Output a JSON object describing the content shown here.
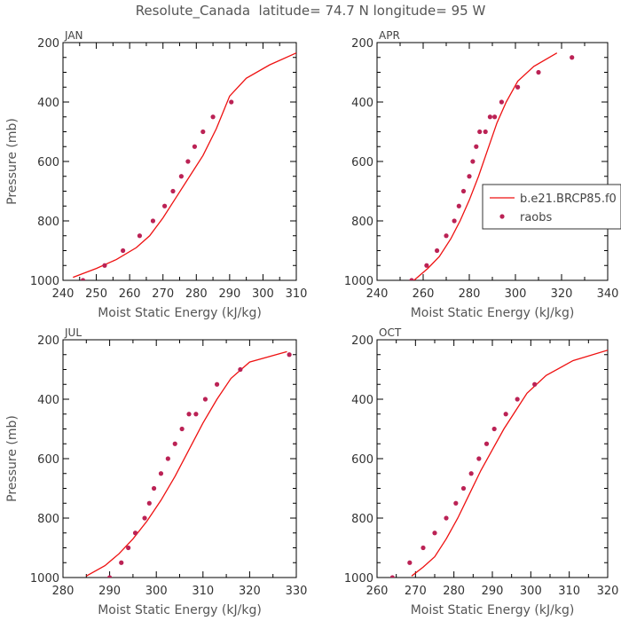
{
  "title": "Resolute_Canada  latitude= 74.7 N longitude= 95 W",
  "colors": {
    "model": "#ee1111",
    "raobs": "#bb2255",
    "axis": "#000000",
    "text": "#555555"
  },
  "chart_data": [
    {
      "type": "line",
      "panel": "JAN",
      "xlabel": "Moist Static Energy (kJ/kg)",
      "ylabel": "Pressure (mb)",
      "xlim": [
        240,
        310
      ],
      "ylim": [
        1000,
        200
      ],
      "xticks": [
        240,
        250,
        260,
        270,
        280,
        290,
        300,
        310
      ],
      "yticks": [
        200,
        400,
        600,
        800,
        1000
      ],
      "series": [
        {
          "name": "b.e21.BRCP85.f0",
          "style": "line",
          "x": [
            243,
            250,
            256,
            262,
            266,
            270,
            274,
            278,
            282,
            286,
            290,
            295,
            302,
            310
          ],
          "y": [
            990,
            960,
            930,
            890,
            850,
            790,
            720,
            650,
            580,
            490,
            380,
            320,
            275,
            235
          ]
        },
        {
          "name": "raobs",
          "style": "points",
          "x": [
            246,
            252.5,
            258,
            263,
            267,
            270.5,
            273,
            275.5,
            277.5,
            279.5,
            282,
            285,
            290.5
          ],
          "y": [
            1000,
            950,
            900,
            850,
            800,
            750,
            700,
            650,
            600,
            550,
            500,
            450,
            400
          ]
        }
      ]
    },
    {
      "type": "line",
      "panel": "APR",
      "xlabel": "Moist Static Energy (kJ/kg)",
      "ylabel": "",
      "xlim": [
        240,
        340
      ],
      "ylim": [
        1000,
        200
      ],
      "xticks": [
        240,
        260,
        280,
        300,
        320,
        340
      ],
      "yticks": [
        200,
        400,
        600,
        800,
        1000
      ],
      "legend": {
        "position": "right",
        "entries": [
          "b.e21.BRCP85.f0",
          "raobs"
        ]
      },
      "series": [
        {
          "name": "b.e21.BRCP85.f0",
          "style": "line",
          "x": [
            256,
            262,
            267,
            272,
            276,
            280,
            284,
            288,
            292,
            296,
            301,
            308,
            318
          ],
          "y": [
            1000,
            960,
            920,
            860,
            800,
            730,
            650,
            560,
            470,
            400,
            330,
            280,
            235
          ]
        },
        {
          "name": "raobs",
          "style": "points",
          "x": [
            255,
            261.5,
            266,
            270,
            273.5,
            275.5,
            277.5,
            280,
            281.5,
            283,
            284.5,
            287,
            289,
            291,
            294,
            301,
            310,
            324.5
          ],
          "y": [
            1000,
            950,
            900,
            850,
            800,
            750,
            700,
            650,
            600,
            550,
            500,
            500,
            450,
            450,
            400,
            350,
            300,
            250
          ]
        }
      ]
    },
    {
      "type": "line",
      "panel": "JUL",
      "xlabel": "Moist Static Energy (kJ/kg)",
      "ylabel": "Pressure (mb)",
      "xlim": [
        280,
        330
      ],
      "ylim": [
        1000,
        200
      ],
      "xticks": [
        280,
        290,
        300,
        310,
        320,
        330
      ],
      "yticks": [
        200,
        400,
        600,
        800,
        1000
      ],
      "series": [
        {
          "name": "b.e21.BRCP85.f0",
          "style": "line",
          "x": [
            285,
            289,
            292,
            295,
            298,
            301,
            304,
            307,
            310,
            313,
            316,
            320,
            328
          ],
          "y": [
            995,
            960,
            920,
            870,
            810,
            740,
            660,
            570,
            480,
            400,
            330,
            275,
            240
          ]
        },
        {
          "name": "raobs",
          "style": "points",
          "x": [
            290,
            292.5,
            294,
            295.5,
            297.5,
            298.5,
            299.5,
            301,
            302.5,
            304,
            305.5,
            307,
            308.5,
            310.5,
            313,
            318,
            328.5
          ],
          "y": [
            1000,
            950,
            900,
            850,
            800,
            750,
            700,
            650,
            600,
            550,
            500,
            450,
            450,
            400,
            350,
            300,
            250
          ]
        }
      ]
    },
    {
      "type": "line",
      "panel": "OCT",
      "xlabel": "Moist Static Energy (kJ/kg)",
      "ylabel": "",
      "xlim": [
        260,
        320
      ],
      "ylim": [
        1000,
        200
      ],
      "xticks": [
        260,
        270,
        280,
        290,
        300,
        310,
        320
      ],
      "yticks": [
        200,
        400,
        600,
        800,
        1000
      ],
      "series": [
        {
          "name": "b.e21.BRCP85.f0",
          "style": "line",
          "x": [
            269,
            272,
            275,
            278,
            281,
            284,
            287,
            290,
            293,
            296,
            299,
            304,
            311,
            320
          ],
          "y": [
            995,
            965,
            930,
            870,
            800,
            720,
            640,
            570,
            500,
            440,
            380,
            320,
            270,
            235
          ]
        },
        {
          "name": "raobs",
          "style": "points",
          "x": [
            264,
            268.5,
            272,
            275,
            278,
            280.5,
            282.5,
            284.5,
            286.5,
            288.5,
            290.5,
            293.5,
            296.5,
            301
          ],
          "y": [
            1000,
            950,
            900,
            850,
            800,
            750,
            700,
            650,
            600,
            550,
            500,
            450,
            400,
            350
          ]
        }
      ]
    }
  ]
}
